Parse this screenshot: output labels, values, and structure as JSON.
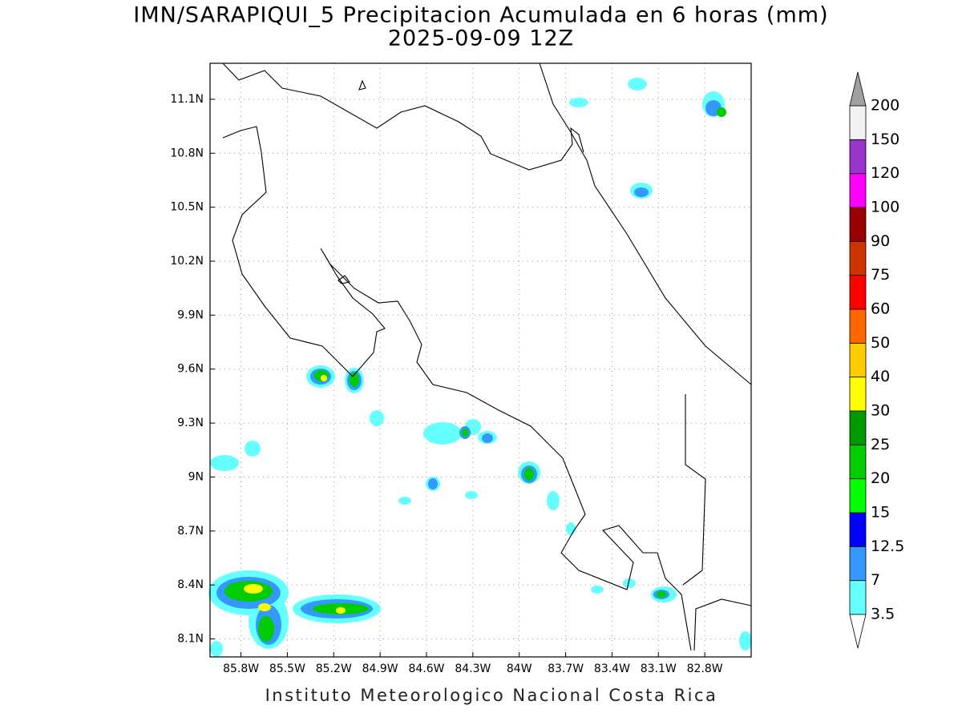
{
  "title": "IMN/SARAPIQUI_5 Precipitacion Acumulada en 6 horas (mm)",
  "subtitle": "2025-09-09 12Z",
  "footer": "Instituto Meteorologico Nacional Costa Rica",
  "map": {
    "xlim": [
      -86.0,
      -82.5
    ],
    "ylim": [
      8.0,
      11.3
    ],
    "xticks": [
      {
        "value": -85.8,
        "label": "85.8W"
      },
      {
        "value": -85.5,
        "label": "85.5W"
      },
      {
        "value": -85.2,
        "label": "85.2W"
      },
      {
        "value": -84.9,
        "label": "84.9W"
      },
      {
        "value": -84.6,
        "label": "84.6W"
      },
      {
        "value": -84.3,
        "label": "84.3W"
      },
      {
        "value": -84.0,
        "label": "84W"
      },
      {
        "value": -83.7,
        "label": "83.7W"
      },
      {
        "value": -83.4,
        "label": "83.4W"
      },
      {
        "value": -83.1,
        "label": "83.1W"
      },
      {
        "value": -82.8,
        "label": "82.8W"
      }
    ],
    "yticks": [
      {
        "value": 8.1,
        "label": "8.1N"
      },
      {
        "value": 8.4,
        "label": "8.4N"
      },
      {
        "value": 8.7,
        "label": "8.7N"
      },
      {
        "value": 9.0,
        "label": "9N"
      },
      {
        "value": 9.3,
        "label": "9.3N"
      },
      {
        "value": 9.6,
        "label": "9.6N"
      },
      {
        "value": 9.9,
        "label": "9.9N"
      },
      {
        "value": 10.2,
        "label": "10.2N"
      },
      {
        "value": 10.5,
        "label": "10.5N"
      },
      {
        "value": 10.8,
        "label": "10.8N"
      },
      {
        "value": 11.1,
        "label": "11.1N"
      }
    ]
  },
  "colorbar": {
    "levels": [
      3.5,
      7,
      12.5,
      15,
      20,
      25,
      30,
      40,
      50,
      60,
      75,
      90,
      100,
      120,
      150,
      200
    ],
    "colors": [
      "#66ffff",
      "#3399ff",
      "#0000ff",
      "#00ff00",
      "#00cc00",
      "#009900",
      "#ffff00",
      "#ffcc00",
      "#ff6600",
      "#ff0000",
      "#cc3300",
      "#990000",
      "#ff00ff",
      "#9933cc",
      "#f2f2f2"
    ],
    "over_color": "#a0a0a0",
    "under_color": "#ffffff"
  }
}
